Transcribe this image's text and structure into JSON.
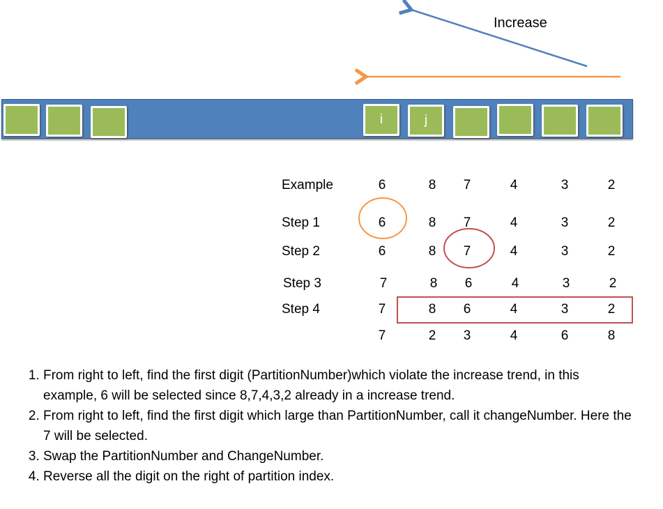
{
  "arrow_label": "Increase",
  "colors": {
    "bar": "#4f81bd",
    "cell": "#9bbb59",
    "up_arrow": "#4f81bd",
    "left_arrow": "#f79646",
    "circle1": "#f79646",
    "circle2": "#c0504d",
    "rect": "#c0504d"
  },
  "cells": [
    "",
    "",
    "",
    "i",
    "j",
    "",
    "",
    "",
    ""
  ],
  "rows": [
    {
      "label": "Example",
      "values": [
        "6",
        "8",
        "7",
        "4",
        "3",
        "2"
      ]
    },
    {
      "label": "Step 1",
      "values": [
        "6",
        "8",
        "7",
        "4",
        "3",
        "2"
      ]
    },
    {
      "label": "Step 2",
      "values": [
        "6",
        "8",
        "7",
        "4",
        "3",
        "2"
      ]
    },
    {
      "label": "Step 3",
      "values": [
        "7",
        "8",
        "6",
        "4",
        "3",
        "2"
      ]
    },
    {
      "label": "Step 4",
      "values": [
        "7",
        "8",
        "6",
        "4",
        "3",
        "2"
      ]
    },
    {
      "label": "",
      "values": [
        "7",
        "2",
        "3",
        "4",
        "6",
        "8"
      ]
    }
  ],
  "steps": [
    "From right to left, find the first digit (PartitionNumber)which violate the increase trend, in this example, 6 will be selected since 8,7,4,3,2 already in a increase trend.",
    "From right to left, find the first digit which large than PartitionNumber, call it changeNumber. Here the 7 will be selected.",
    "Swap the PartitionNumber and ChangeNumber.",
    "Reverse all the digit on the right of partition index."
  ]
}
